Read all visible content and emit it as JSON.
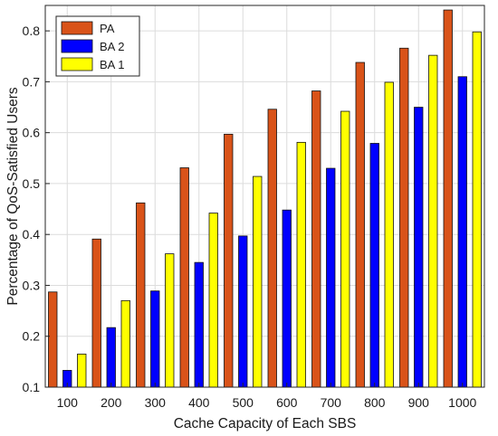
{
  "chart_data": {
    "type": "bar",
    "title": "",
    "xlabel": "Cache Capacity of Each SBS",
    "ylabel": "Percentage of QoS-Satisfied Users",
    "categories": [
      "100",
      "200",
      "300",
      "400",
      "500",
      "600",
      "700",
      "800",
      "900",
      "1000"
    ],
    "ylim": [
      0.1,
      0.85
    ],
    "yticks": [
      "0.1",
      "0.2",
      "0.3",
      "0.4",
      "0.5",
      "0.6",
      "0.7",
      "0.8"
    ],
    "grid": true,
    "legend_position": "top-left",
    "series": [
      {
        "name": "PA",
        "color": "#d95319",
        "values": [
          0.287,
          0.391,
          0.462,
          0.531,
          0.597,
          0.646,
          0.682,
          0.738,
          0.766,
          0.841
        ]
      },
      {
        "name": "BA 2",
        "color": "#0000ff",
        "values": [
          0.133,
          0.217,
          0.289,
          0.345,
          0.397,
          0.448,
          0.53,
          0.579,
          0.65,
          0.71
        ]
      },
      {
        "name": "BA 1",
        "color": "#ffff00",
        "values": [
          0.165,
          0.27,
          0.362,
          0.442,
          0.514,
          0.581,
          0.642,
          0.699,
          0.752,
          0.798
        ]
      }
    ]
  }
}
